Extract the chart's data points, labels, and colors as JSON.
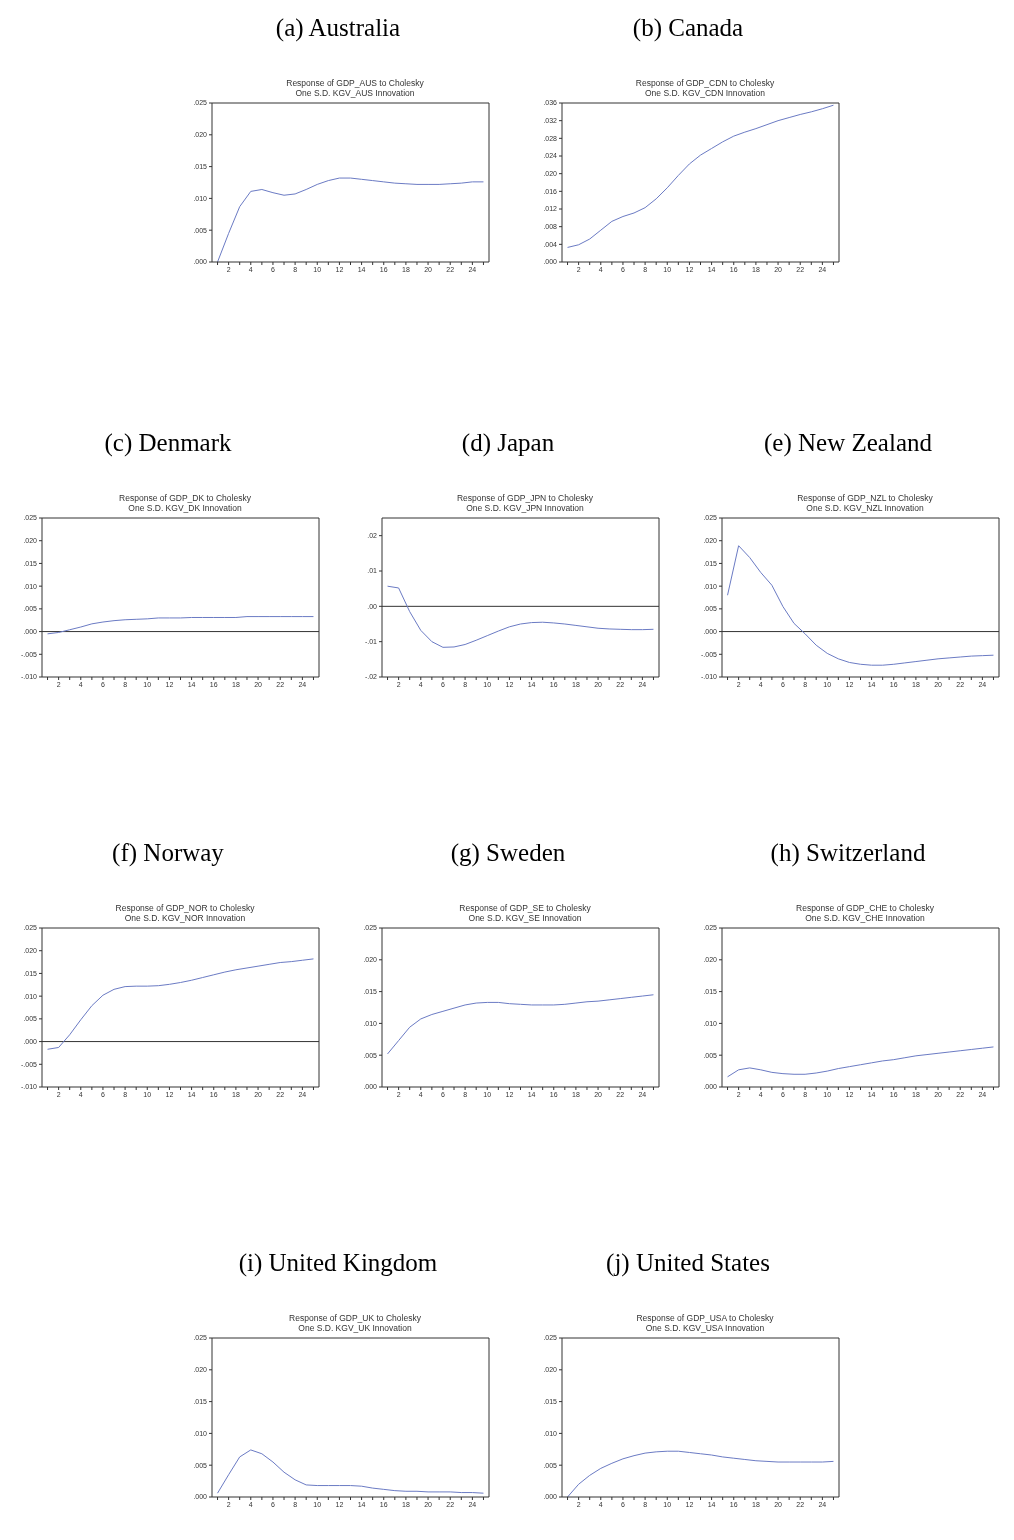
{
  "chart_data": [
    {
      "type": "line",
      "title": "(a) Australia",
      "subtitle": "Response of GDP_AUS to Cholesky\nOne S.D. KGV_AUS Innovation",
      "color": "#6b7bc4",
      "x": [
        1,
        2,
        3,
        4,
        5,
        6,
        7,
        8,
        9,
        10,
        11,
        12,
        13,
        14,
        15,
        16,
        17,
        18,
        19,
        20,
        21,
        22,
        23,
        24,
        25
      ],
      "values": [
        0.0,
        0.0045,
        0.0087,
        0.0111,
        0.0114,
        0.0109,
        0.0105,
        0.0107,
        0.0114,
        0.0122,
        0.0128,
        0.0132,
        0.0132,
        0.013,
        0.0128,
        0.0126,
        0.0124,
        0.0123,
        0.0122,
        0.0122,
        0.0122,
        0.0123,
        0.0124,
        0.0126,
        0.0126
      ],
      "xlim": [
        0.5,
        25.5
      ],
      "xticks": [
        {
          "value": 1,
          "label": null
        },
        2,
        {
          "value": 3,
          "label": null
        },
        4,
        {
          "value": 5,
          "label": null
        },
        6,
        {
          "value": 7,
          "label": null
        },
        8,
        {
          "value": 9,
          "label": null
        },
        10,
        {
          "value": 11,
          "label": null
        },
        12,
        {
          "value": 13,
          "label": null
        },
        14,
        {
          "value": 15,
          "label": null
        },
        16,
        {
          "value": 17,
          "label": null
        },
        18,
        {
          "value": 19,
          "label": null
        },
        20,
        {
          "value": 21,
          "label": null
        },
        22,
        {
          "value": 23,
          "label": null
        },
        24,
        {
          "value": 25,
          "label": null
        }
      ],
      "ylim": [
        0,
        0.025
      ],
      "yticks": [
        {
          "value": 0,
          "label": ".000"
        },
        {
          "value": 0.005,
          "label": ".005"
        },
        {
          "value": 0.01,
          "label": ".010"
        },
        {
          "value": 0.015,
          "label": ".015"
        },
        {
          "value": 0.02,
          "label": ".020"
        },
        {
          "value": 0.025,
          "label": ".025"
        }
      ]
    },
    {
      "type": "line",
      "title": "(b) Canada",
      "subtitle": "Response of GDP_CDN to Cholesky\nOne S.D. KGV_CDN Innovation",
      "color": "#6b7bc4",
      "x": [
        1,
        2,
        3,
        4,
        5,
        6,
        7,
        8,
        9,
        10,
        11,
        12,
        13,
        14,
        15,
        16,
        17,
        18,
        19,
        20,
        21,
        22,
        23,
        24,
        25
      ],
      "values": [
        0.0033,
        0.0039,
        0.0052,
        0.0072,
        0.0092,
        0.0103,
        0.0111,
        0.0123,
        0.0143,
        0.0168,
        0.0196,
        0.0222,
        0.0242,
        0.0257,
        0.0272,
        0.0285,
        0.0294,
        0.0302,
        0.0311,
        0.032,
        0.0327,
        0.0334,
        0.034,
        0.0347,
        0.0355
      ],
      "xlim": [
        0.5,
        25.5
      ],
      "xticks": [
        {
          "value": 1,
          "label": null
        },
        2,
        {
          "value": 3,
          "label": null
        },
        4,
        {
          "value": 5,
          "label": null
        },
        6,
        {
          "value": 7,
          "label": null
        },
        8,
        {
          "value": 9,
          "label": null
        },
        10,
        {
          "value": 11,
          "label": null
        },
        12,
        {
          "value": 13,
          "label": null
        },
        14,
        {
          "value": 15,
          "label": null
        },
        16,
        {
          "value": 17,
          "label": null
        },
        18,
        {
          "value": 19,
          "label": null
        },
        20,
        {
          "value": 21,
          "label": null
        },
        22,
        {
          "value": 23,
          "label": null
        },
        24,
        {
          "value": 25,
          "label": null
        }
      ],
      "ylim": [
        0,
        0.036
      ],
      "yticks": [
        {
          "value": 0,
          "label": ".000"
        },
        {
          "value": 0.004,
          "label": ".004"
        },
        {
          "value": 0.008,
          "label": ".008"
        },
        {
          "value": 0.012,
          "label": ".012"
        },
        {
          "value": 0.016,
          "label": ".016"
        },
        {
          "value": 0.02,
          "label": ".020"
        },
        {
          "value": 0.024,
          "label": ".024"
        },
        {
          "value": 0.028,
          "label": ".028"
        },
        {
          "value": 0.032,
          "label": ".032"
        },
        {
          "value": 0.036,
          "label": ".036"
        }
      ]
    },
    {
      "type": "line",
      "title": "(c) Denmark",
      "subtitle": "Response of GDP_DK to Cholesky\nOne S.D. KGV_DK Innovation",
      "color": "#6b7bc4",
      "x": [
        1,
        2,
        3,
        4,
        5,
        6,
        7,
        8,
        9,
        10,
        11,
        12,
        13,
        14,
        15,
        16,
        17,
        18,
        19,
        20,
        21,
        22,
        23,
        24,
        25
      ],
      "values": [
        -0.0005,
        -0.0002,
        0.0004,
        0.001,
        0.0017,
        0.0021,
        0.0024,
        0.0026,
        0.0027,
        0.0028,
        0.003,
        0.003,
        0.003,
        0.0031,
        0.0031,
        0.0031,
        0.0031,
        0.0031,
        0.0033,
        0.0033,
        0.0033,
        0.0033,
        0.0033,
        0.0033,
        0.0033
      ],
      "xlim": [
        0.5,
        25.5
      ],
      "xticks": [
        {
          "value": 1,
          "label": null
        },
        2,
        {
          "value": 3,
          "label": null
        },
        4,
        {
          "value": 5,
          "label": null
        },
        6,
        {
          "value": 7,
          "label": null
        },
        8,
        {
          "value": 9,
          "label": null
        },
        10,
        {
          "value": 11,
          "label": null
        },
        12,
        {
          "value": 13,
          "label": null
        },
        14,
        {
          "value": 15,
          "label": null
        },
        16,
        {
          "value": 17,
          "label": null
        },
        18,
        {
          "value": 19,
          "label": null
        },
        20,
        {
          "value": 21,
          "label": null
        },
        22,
        {
          "value": 23,
          "label": null
        },
        24,
        {
          "value": 25,
          "label": null
        }
      ],
      "ylim": [
        -0.01,
        0.025
      ],
      "yticks": [
        {
          "value": -0.01,
          "label": "-.010"
        },
        {
          "value": -0.005,
          "label": "-.005"
        },
        {
          "value": 0,
          "label": ".000"
        },
        {
          "value": 0.005,
          "label": ".005"
        },
        {
          "value": 0.01,
          "label": ".010"
        },
        {
          "value": 0.015,
          "label": ".015"
        },
        {
          "value": 0.02,
          "label": ".020"
        },
        {
          "value": 0.025,
          "label": ".025"
        }
      ],
      "ref_lines": [
        {
          "axis": "y",
          "value": 0,
          "color": "#333333"
        }
      ]
    },
    {
      "type": "line",
      "title": "(d) Japan",
      "subtitle": "Response of GDP_JPN to Cholesky\nOne S.D. KGV_JPN Innovation",
      "color": "#6b7bc4",
      "x": [
        1,
        2,
        3,
        4,
        5,
        6,
        7,
        8,
        9,
        10,
        11,
        12,
        13,
        14,
        15,
        16,
        17,
        18,
        19,
        20,
        21,
        22,
        23,
        24,
        25
      ],
      "values": [
        0.0057,
        0.0052,
        -0.0015,
        -0.0068,
        -0.01,
        -0.0116,
        -0.0115,
        -0.0108,
        -0.0096,
        -0.0083,
        -0.007,
        -0.0058,
        -0.005,
        -0.0046,
        -0.0045,
        -0.0047,
        -0.005,
        -0.0054,
        -0.0058,
        -0.0062,
        -0.0064,
        -0.0065,
        -0.0066,
        -0.0066,
        -0.0065
      ],
      "xlim": [
        0.5,
        25.5
      ],
      "xticks": [
        {
          "value": 1,
          "label": null
        },
        2,
        {
          "value": 3,
          "label": null
        },
        4,
        {
          "value": 5,
          "label": null
        },
        6,
        {
          "value": 7,
          "label": null
        },
        8,
        {
          "value": 9,
          "label": null
        },
        10,
        {
          "value": 11,
          "label": null
        },
        12,
        {
          "value": 13,
          "label": null
        },
        14,
        {
          "value": 15,
          "label": null
        },
        16,
        {
          "value": 17,
          "label": null
        },
        18,
        {
          "value": 19,
          "label": null
        },
        20,
        {
          "value": 21,
          "label": null
        },
        22,
        {
          "value": 23,
          "label": null
        },
        24,
        {
          "value": 25,
          "label": null
        }
      ],
      "ylim": [
        -0.02,
        0.025
      ],
      "yticks": [
        {
          "value": -0.02,
          "label": "-.02"
        },
        {
          "value": -0.01,
          "label": "-.01"
        },
        {
          "value": 0,
          "label": ".00"
        },
        {
          "value": 0.01,
          "label": ".01"
        },
        {
          "value": 0.02,
          "label": ".02"
        }
      ],
      "ref_lines": [
        {
          "axis": "y",
          "value": 0,
          "color": "#333333"
        }
      ]
    },
    {
      "type": "line",
      "title": "(e) New Zealand",
      "subtitle": "Response of GDP_NZL to Cholesky\nOne S.D. KGV_NZL Innovation",
      "color": "#6b7bc4",
      "x": [
        1,
        2,
        3,
        4,
        5,
        6,
        7,
        8,
        9,
        10,
        11,
        12,
        13,
        14,
        15,
        16,
        17,
        18,
        19,
        20,
        21,
        22,
        23,
        24,
        25
      ],
      "values": [
        0.008,
        0.0189,
        0.0163,
        0.013,
        0.0102,
        0.0055,
        0.0018,
        -0.0005,
        -0.003,
        -0.0048,
        -0.006,
        -0.0068,
        -0.0072,
        -0.0074,
        -0.0074,
        -0.0072,
        -0.0069,
        -0.0066,
        -0.0063,
        -0.006,
        -0.0058,
        -0.0056,
        -0.0054,
        -0.0053,
        -0.0052
      ],
      "xlim": [
        0.5,
        25.5
      ],
      "xticks": [
        {
          "value": 1,
          "label": null
        },
        2,
        {
          "value": 3,
          "label": null
        },
        4,
        {
          "value": 5,
          "label": null
        },
        6,
        {
          "value": 7,
          "label": null
        },
        8,
        {
          "value": 9,
          "label": null
        },
        10,
        {
          "value": 11,
          "label": null
        },
        12,
        {
          "value": 13,
          "label": null
        },
        14,
        {
          "value": 15,
          "label": null
        },
        16,
        {
          "value": 17,
          "label": null
        },
        18,
        {
          "value": 19,
          "label": null
        },
        20,
        {
          "value": 21,
          "label": null
        },
        22,
        {
          "value": 23,
          "label": null
        },
        24,
        {
          "value": 25,
          "label": null
        }
      ],
      "ylim": [
        -0.01,
        0.025
      ],
      "yticks": [
        {
          "value": -0.01,
          "label": "-.010"
        },
        {
          "value": -0.005,
          "label": "-.005"
        },
        {
          "value": 0,
          "label": ".000"
        },
        {
          "value": 0.005,
          "label": ".005"
        },
        {
          "value": 0.01,
          "label": ".010"
        },
        {
          "value": 0.015,
          "label": ".015"
        },
        {
          "value": 0.02,
          "label": ".020"
        },
        {
          "value": 0.025,
          "label": ".025"
        }
      ],
      "ref_lines": [
        {
          "axis": "y",
          "value": 0,
          "color": "#333333"
        }
      ]
    },
    {
      "type": "line",
      "title": "(f) Norway",
      "subtitle": "Response of GDP_NOR to Cholesky\nOne S.D. KGV_NOR Innovation",
      "color": "#6b7bc4",
      "x": [
        1,
        2,
        3,
        4,
        5,
        6,
        7,
        8,
        9,
        10,
        11,
        12,
        13,
        14,
        15,
        16,
        17,
        18,
        19,
        20,
        21,
        22,
        23,
        24,
        25
      ],
      "values": [
        -0.0017,
        -0.0013,
        0.0015,
        0.0048,
        0.0079,
        0.0102,
        0.0115,
        0.0121,
        0.0122,
        0.0122,
        0.0123,
        0.0126,
        0.013,
        0.0135,
        0.0141,
        0.0147,
        0.0153,
        0.0158,
        0.0162,
        0.0166,
        0.017,
        0.0174,
        0.0176,
        0.0179,
        0.0182
      ],
      "xlim": [
        0.5,
        25.5
      ],
      "xticks": [
        {
          "value": 1,
          "label": null
        },
        2,
        {
          "value": 3,
          "label": null
        },
        4,
        {
          "value": 5,
          "label": null
        },
        6,
        {
          "value": 7,
          "label": null
        },
        8,
        {
          "value": 9,
          "label": null
        },
        10,
        {
          "value": 11,
          "label": null
        },
        12,
        {
          "value": 13,
          "label": null
        },
        14,
        {
          "value": 15,
          "label": null
        },
        16,
        {
          "value": 17,
          "label": null
        },
        18,
        {
          "value": 19,
          "label": null
        },
        20,
        {
          "value": 21,
          "label": null
        },
        22,
        {
          "value": 23,
          "label": null
        },
        24,
        {
          "value": 25,
          "label": null
        }
      ],
      "ylim": [
        -0.01,
        0.025
      ],
      "yticks": [
        {
          "value": -0.01,
          "label": "-.010"
        },
        {
          "value": -0.005,
          "label": "-.005"
        },
        {
          "value": 0,
          "label": ".000"
        },
        {
          "value": 0.005,
          "label": ".005"
        },
        {
          "value": 0.01,
          "label": ".010"
        },
        {
          "value": 0.015,
          "label": ".015"
        },
        {
          "value": 0.02,
          "label": ".020"
        },
        {
          "value": 0.025,
          "label": ".025"
        }
      ],
      "ref_lines": [
        {
          "axis": "y",
          "value": 0,
          "color": "#333333"
        }
      ]
    },
    {
      "type": "line",
      "title": "(g) Sweden",
      "subtitle": "Response of GDP_SE to Cholesky\nOne S.D. KGV_SE Innovation",
      "color": "#6b7bc4",
      "x": [
        1,
        2,
        3,
        4,
        5,
        6,
        7,
        8,
        9,
        10,
        11,
        12,
        13,
        14,
        15,
        16,
        17,
        18,
        19,
        20,
        21,
        22,
        23,
        24,
        25
      ],
      "values": [
        0.0052,
        0.0073,
        0.0094,
        0.0107,
        0.0114,
        0.0119,
        0.0124,
        0.0129,
        0.0132,
        0.0133,
        0.0133,
        0.0131,
        0.013,
        0.0129,
        0.0129,
        0.0129,
        0.013,
        0.0132,
        0.0134,
        0.0135,
        0.0137,
        0.0139,
        0.0141,
        0.0143,
        0.0145
      ],
      "xlim": [
        0.5,
        25.5
      ],
      "xticks": [
        {
          "value": 1,
          "label": null
        },
        2,
        {
          "value": 3,
          "label": null
        },
        4,
        {
          "value": 5,
          "label": null
        },
        6,
        {
          "value": 7,
          "label": null
        },
        8,
        {
          "value": 9,
          "label": null
        },
        10,
        {
          "value": 11,
          "label": null
        },
        12,
        {
          "value": 13,
          "label": null
        },
        14,
        {
          "value": 15,
          "label": null
        },
        16,
        {
          "value": 17,
          "label": null
        },
        18,
        {
          "value": 19,
          "label": null
        },
        20,
        {
          "value": 21,
          "label": null
        },
        22,
        {
          "value": 23,
          "label": null
        },
        24,
        {
          "value": 25,
          "label": null
        }
      ],
      "ylim": [
        0,
        0.025
      ],
      "yticks": [
        {
          "value": 0,
          "label": ".000"
        },
        {
          "value": 0.005,
          "label": ".005"
        },
        {
          "value": 0.01,
          "label": ".010"
        },
        {
          "value": 0.015,
          "label": ".015"
        },
        {
          "value": 0.02,
          "label": ".020"
        },
        {
          "value": 0.025,
          "label": ".025"
        }
      ]
    },
    {
      "type": "line",
      "title": "(h) Switzerland",
      "subtitle": "Response of GDP_CHE to Cholesky\nOne S.D. KGV_CHE Innovation",
      "color": "#6b7bc4",
      "x": [
        1,
        2,
        3,
        4,
        5,
        6,
        7,
        8,
        9,
        10,
        11,
        12,
        13,
        14,
        15,
        16,
        17,
        18,
        19,
        20,
        21,
        22,
        23,
        24,
        25
      ],
      "values": [
        0.0016,
        0.0027,
        0.003,
        0.0027,
        0.0023,
        0.0021,
        0.002,
        0.002,
        0.0022,
        0.0025,
        0.0029,
        0.0032,
        0.0035,
        0.0038,
        0.0041,
        0.0043,
        0.0046,
        0.0049,
        0.0051,
        0.0053,
        0.0055,
        0.0057,
        0.0059,
        0.0061,
        0.0063
      ],
      "xlim": [
        0.5,
        25.5
      ],
      "xticks": [
        {
          "value": 1,
          "label": null
        },
        2,
        {
          "value": 3,
          "label": null
        },
        4,
        {
          "value": 5,
          "label": null
        },
        6,
        {
          "value": 7,
          "label": null
        },
        8,
        {
          "value": 9,
          "label": null
        },
        10,
        {
          "value": 11,
          "label": null
        },
        12,
        {
          "value": 13,
          "label": null
        },
        14,
        {
          "value": 15,
          "label": null
        },
        16,
        {
          "value": 17,
          "label": null
        },
        18,
        {
          "value": 19,
          "label": null
        },
        20,
        {
          "value": 21,
          "label": null
        },
        22,
        {
          "value": 23,
          "label": null
        },
        24,
        {
          "value": 25,
          "label": null
        }
      ],
      "ylim": [
        0,
        0.025
      ],
      "yticks": [
        {
          "value": 0,
          "label": ".000"
        },
        {
          "value": 0.005,
          "label": ".005"
        },
        {
          "value": 0.01,
          "label": ".010"
        },
        {
          "value": 0.015,
          "label": ".015"
        },
        {
          "value": 0.02,
          "label": ".020"
        },
        {
          "value": 0.025,
          "label": ".025"
        }
      ]
    },
    {
      "type": "line",
      "title": "(i) United Kingdom",
      "subtitle": "Response of GDP_UK to Cholesky\nOne S.D. KGV_UK Innovation",
      "color": "#6b7bc4",
      "x": [
        1,
        2,
        3,
        4,
        5,
        6,
        7,
        8,
        9,
        10,
        11,
        12,
        13,
        14,
        15,
        16,
        17,
        18,
        19,
        20,
        21,
        22,
        23,
        24,
        25
      ],
      "values": [
        0.0006,
        0.0035,
        0.0063,
        0.0074,
        0.0068,
        0.0055,
        0.0039,
        0.0027,
        0.0019,
        0.0018,
        0.0018,
        0.0018,
        0.0018,
        0.0017,
        0.0014,
        0.0012,
        0.001,
        0.0009,
        0.0009,
        0.0008,
        0.0008,
        0.0008,
        0.0007,
        0.0007,
        0.0006
      ],
      "xlim": [
        0.5,
        25.5
      ],
      "xticks": [
        {
          "value": 1,
          "label": null
        },
        2,
        {
          "value": 3,
          "label": null
        },
        4,
        {
          "value": 5,
          "label": null
        },
        6,
        {
          "value": 7,
          "label": null
        },
        8,
        {
          "value": 9,
          "label": null
        },
        10,
        {
          "value": 11,
          "label": null
        },
        12,
        {
          "value": 13,
          "label": null
        },
        14,
        {
          "value": 15,
          "label": null
        },
        16,
        {
          "value": 17,
          "label": null
        },
        18,
        {
          "value": 19,
          "label": null
        },
        20,
        {
          "value": 21,
          "label": null
        },
        22,
        {
          "value": 23,
          "label": null
        },
        24,
        {
          "value": 25,
          "label": null
        }
      ],
      "ylim": [
        0,
        0.025
      ],
      "yticks": [
        {
          "value": 0,
          "label": ".000"
        },
        {
          "value": 0.005,
          "label": ".005"
        },
        {
          "value": 0.01,
          "label": ".010"
        },
        {
          "value": 0.015,
          "label": ".015"
        },
        {
          "value": 0.02,
          "label": ".020"
        },
        {
          "value": 0.025,
          "label": ".025"
        }
      ]
    },
    {
      "type": "line",
      "title": "(j) United States",
      "subtitle": "Response of GDP_USA to Cholesky\nOne S.D. KGV_USA Innovation",
      "color": "#6b7bc4",
      "x": [
        1,
        2,
        3,
        4,
        5,
        6,
        7,
        8,
        9,
        10,
        11,
        12,
        13,
        14,
        15,
        16,
        17,
        18,
        19,
        20,
        21,
        22,
        23,
        24,
        25
      ],
      "values": [
        0.0,
        0.002,
        0.0034,
        0.0045,
        0.0053,
        0.006,
        0.0065,
        0.0069,
        0.0071,
        0.0072,
        0.0072,
        0.007,
        0.0068,
        0.0066,
        0.0063,
        0.0061,
        0.0059,
        0.0057,
        0.0056,
        0.0055,
        0.0055,
        0.0055,
        0.0055,
        0.0055,
        0.0056
      ],
      "xlim": [
        0.5,
        25.5
      ],
      "xticks": [
        {
          "value": 1,
          "label": null
        },
        2,
        {
          "value": 3,
          "label": null
        },
        4,
        {
          "value": 5,
          "label": null
        },
        6,
        {
          "value": 7,
          "label": null
        },
        8,
        {
          "value": 9,
          "label": null
        },
        10,
        {
          "value": 11,
          "label": null
        },
        12,
        {
          "value": 13,
          "label": null
        },
        14,
        {
          "value": 15,
          "label": null
        },
        16,
        {
          "value": 17,
          "label": null
        },
        18,
        {
          "value": 19,
          "label": null
        },
        20,
        {
          "value": 21,
          "label": null
        },
        22,
        {
          "value": 23,
          "label": null
        },
        24,
        {
          "value": 25,
          "label": null
        }
      ],
      "ylim": [
        0,
        0.025
      ],
      "yticks": [
        {
          "value": 0,
          "label": ".000"
        },
        {
          "value": 0.005,
          "label": ".005"
        },
        {
          "value": 0.01,
          "label": ".010"
        },
        {
          "value": 0.015,
          "label": ".015"
        },
        {
          "value": 0.02,
          "label": ".020"
        },
        {
          "value": 0.025,
          "label": ".025"
        }
      ]
    }
  ]
}
